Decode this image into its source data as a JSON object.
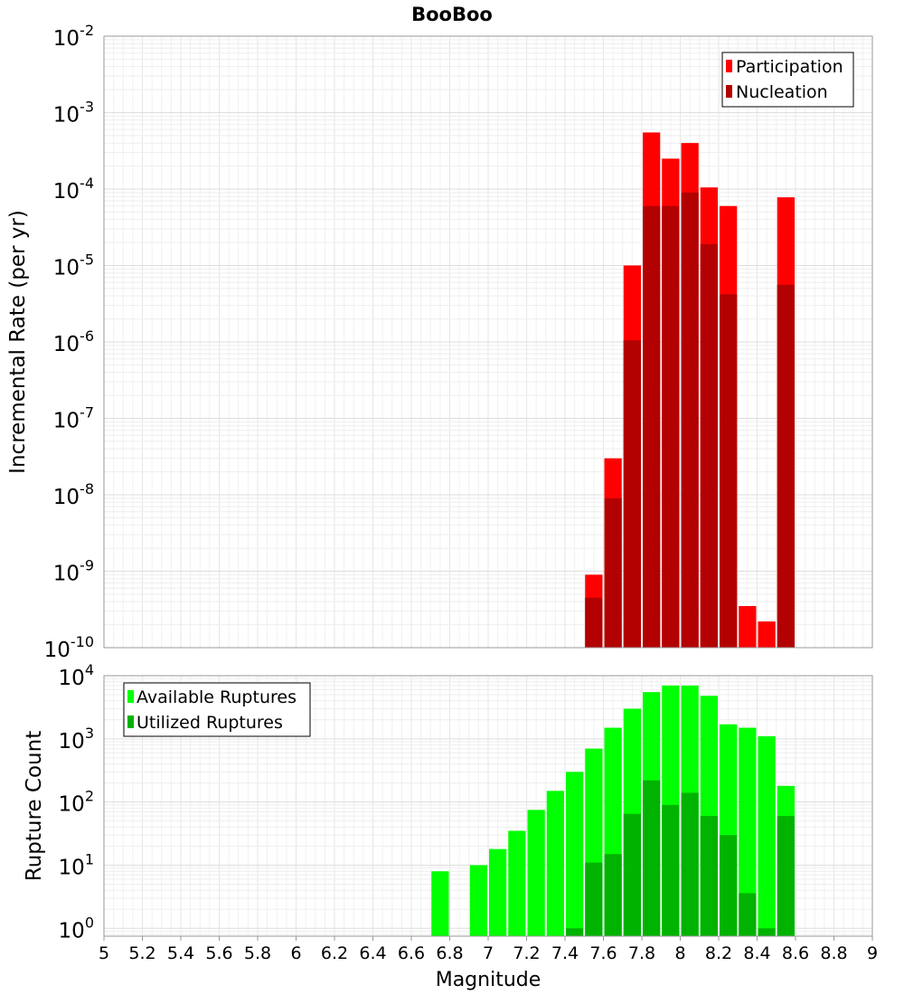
{
  "title": "BooBoo",
  "chart_data": [
    {
      "type": "bar",
      "ylabel": "Incremental Rate (per yr)",
      "xlabel": "",
      "yscale": "log",
      "ylim": [
        1e-10,
        0.01
      ],
      "xlim": [
        5,
        9
      ],
      "legend_position": "top-right",
      "ytick_labels": [
        {
          "base": "10",
          "exp": "-10",
          "value": 1e-10
        },
        {
          "base": "10",
          "exp": "-9",
          "value": 1e-09
        },
        {
          "base": "10",
          "exp": "-8",
          "value": 1e-08
        },
        {
          "base": "10",
          "exp": "-7",
          "value": 1e-07
        },
        {
          "base": "10",
          "exp": "-6",
          "value": 1e-06
        },
        {
          "base": "10",
          "exp": "-5",
          "value": 1e-05
        },
        {
          "base": "10",
          "exp": "-4",
          "value": 0.0001
        },
        {
          "base": "10",
          "exp": "-3",
          "value": 0.001
        },
        {
          "base": "10",
          "exp": "-2",
          "value": 0.01
        }
      ],
      "x": [
        7.55,
        7.65,
        7.75,
        7.85,
        7.95,
        8.05,
        8.15,
        8.25,
        8.35,
        8.45,
        8.55
      ],
      "series": [
        {
          "name": "Participation",
          "color": "#ff0000",
          "values": [
            9e-10,
            3e-08,
            1e-05,
            0.00055,
            0.00025,
            0.0004,
            0.000105,
            6e-05,
            3.5e-10,
            2.2e-10,
            7.8e-05
          ]
        },
        {
          "name": "Nucleation",
          "color": "#b30000",
          "values": [
            4.5e-10,
            9e-09,
            1.05e-06,
            6e-05,
            6e-05,
            9e-05,
            1.9e-05,
            4.2e-06,
            null,
            null,
            5.6e-06
          ]
        }
      ]
    },
    {
      "type": "bar",
      "ylabel": "Rupture Count",
      "xlabel": "Magnitude",
      "yscale": "log",
      "ylim": [
        0.75,
        10000
      ],
      "xlim": [
        5,
        9
      ],
      "legend_position": "top-left",
      "ytick_labels": [
        {
          "base": "10",
          "exp": "0",
          "value": 1
        },
        {
          "base": "10",
          "exp": "1",
          "value": 10
        },
        {
          "base": "10",
          "exp": "2",
          "value": 100
        },
        {
          "base": "10",
          "exp": "3",
          "value": 1000
        },
        {
          "base": "10",
          "exp": "4",
          "value": 10000
        }
      ],
      "xtick_labels": [
        "5",
        "5.2",
        "5.4",
        "5.6",
        "5.8",
        "6",
        "6.2",
        "6.4",
        "6.6",
        "6.8",
        "7",
        "7.2",
        "7.4",
        "7.6",
        "7.8",
        "8",
        "8.2",
        "8.4",
        "8.6",
        "8.8",
        "9"
      ],
      "x": [
        6.75,
        6.95,
        7.05,
        7.15,
        7.25,
        7.35,
        7.45,
        7.55,
        7.65,
        7.75,
        7.85,
        7.95,
        8.05,
        8.15,
        8.25,
        8.35,
        8.45,
        8.55
      ],
      "series": [
        {
          "name": "Available Ruptures",
          "color": "#00ff00",
          "values": [
            8,
            10,
            18,
            35,
            75,
            150,
            300,
            700,
            1500,
            3000,
            5500,
            7000,
            7000,
            4800,
            1700,
            1500,
            1100,
            180
          ]
        },
        {
          "name": "Utilized Ruptures",
          "color": "#00b300",
          "values": [
            null,
            null,
            null,
            null,
            null,
            null,
            1,
            11,
            15,
            65,
            220,
            90,
            140,
            60,
            30,
            3.6,
            1,
            60
          ]
        }
      ]
    }
  ]
}
